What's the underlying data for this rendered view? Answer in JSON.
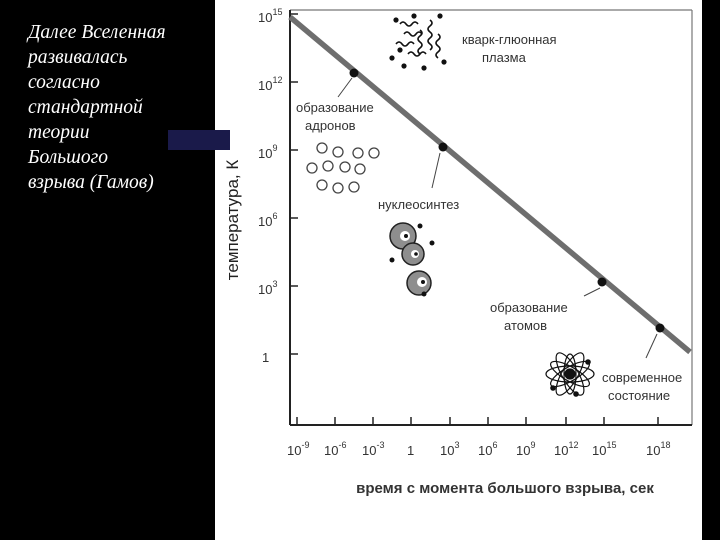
{
  "caption_lines": [
    "Далее Вселенная",
    "развивалась",
    "согласно",
    "стандартной",
    "теории",
    "Большого",
    "взрыва  (Гамов)"
  ],
  "chart": {
    "ylabel": "температура, К",
    "xlabel": "время с момента большого взрыва, сек",
    "y_ticks": [
      {
        "base": "10",
        "exp": "15"
      },
      {
        "base": "10",
        "exp": "12"
      },
      {
        "base": "10",
        "exp": "9"
      },
      {
        "base": "10",
        "exp": "6"
      },
      {
        "base": "10",
        "exp": "3"
      },
      {
        "base": "1",
        "exp": ""
      }
    ],
    "x_ticks": [
      {
        "base": "10",
        "exp": "-9"
      },
      {
        "base": "10",
        "exp": "-6"
      },
      {
        "base": "10",
        "exp": "-3"
      },
      {
        "base": "1",
        "exp": ""
      },
      {
        "base": "10",
        "exp": "3"
      },
      {
        "base": "10",
        "exp": "6"
      },
      {
        "base": "10",
        "exp": "9"
      },
      {
        "base": "10",
        "exp": "12"
      },
      {
        "base": "10",
        "exp": "15"
      },
      {
        "base": "10",
        "exp": "18"
      }
    ]
  },
  "labels": {
    "quark": [
      "кварк-глюонная",
      "плазма"
    ],
    "hadrons": [
      "образование",
      "адронов"
    ],
    "nucleo": "нуклеосинтез",
    "atoms": [
      "образование",
      "атомов"
    ],
    "present": [
      "современное",
      "состояние"
    ]
  }
}
